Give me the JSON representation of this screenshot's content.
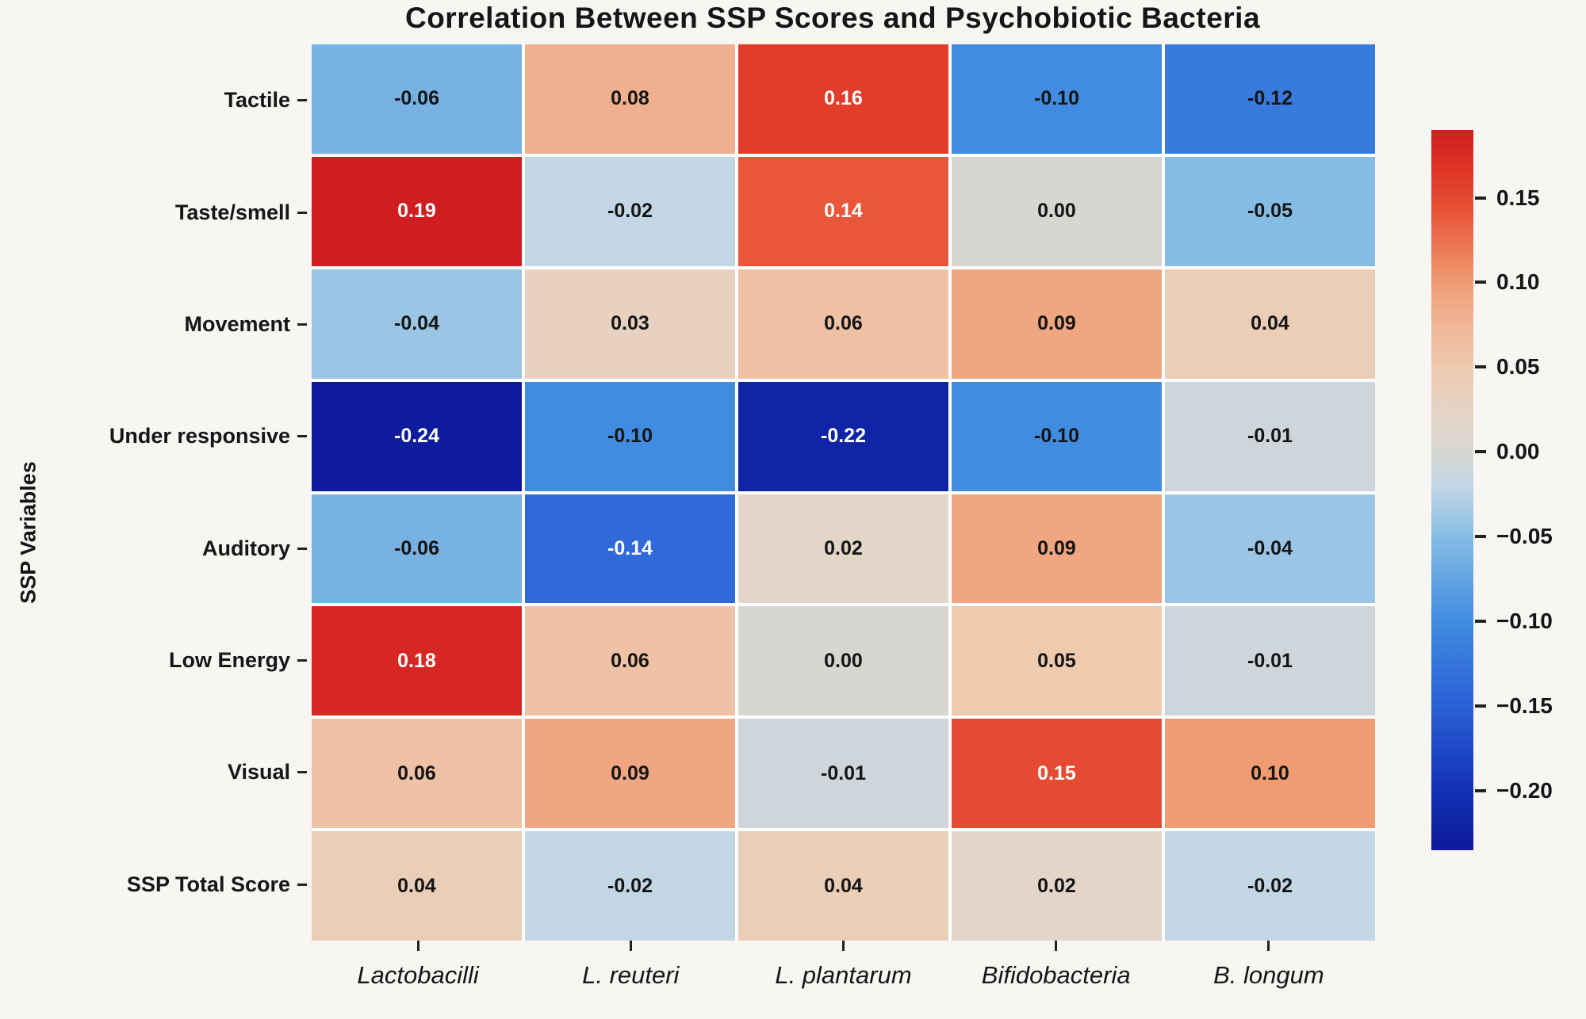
{
  "figure": {
    "background_color": "#f8f6f3",
    "gridline_color": "#ffffff",
    "label_color": "#161616"
  },
  "chart_data": {
    "type": "heatmap",
    "title": "Correlation Between SSP Scores and Psychobiotic Bacteria",
    "xlabel": "",
    "ylabel": "SSP Variables",
    "rows": [
      "Tactile",
      "Taste/smell",
      "Movement",
      "Under responsive",
      "Auditory",
      "Low Energy",
      "Visual",
      "SSP Total Score"
    ],
    "columns": [
      "Lactobacilli",
      "L. reuteri",
      "L. plantarum",
      "Bifidobacteria",
      "B. longum"
    ],
    "values": [
      [
        -0.06,
        0.08,
        0.16,
        -0.1,
        -0.12
      ],
      [
        0.19,
        -0.02,
        0.14,
        0.0,
        -0.05
      ],
      [
        -0.04,
        0.03,
        0.06,
        0.09,
        0.04
      ],
      [
        -0.24,
        -0.1,
        -0.22,
        -0.1,
        -0.01
      ],
      [
        -0.06,
        -0.14,
        0.02,
        0.09,
        -0.04
      ],
      [
        0.18,
        0.06,
        0.0,
        0.05,
        -0.01
      ],
      [
        0.06,
        0.09,
        -0.01,
        0.15,
        0.1
      ],
      [
        0.04,
        -0.02,
        0.04,
        0.02,
        -0.02
      ]
    ],
    "annotation_decimals": 2,
    "white_text_abs_threshold": 0.14,
    "annotation_dark_color": "#141414",
    "annotation_light_color": "#ffffff",
    "color_domain": [
      -0.235,
      0.19
    ],
    "colormap_stops": [
      {
        "value": -0.235,
        "color": "#0d1b9c"
      },
      {
        "value": -0.2,
        "color": "#1231b4"
      },
      {
        "value": -0.15,
        "color": "#2b60d8"
      },
      {
        "value": -0.1,
        "color": "#418ce0"
      },
      {
        "value": -0.05,
        "color": "#85bce4"
      },
      {
        "value": -0.02,
        "color": "#c3d6e4"
      },
      {
        "value": 0.0,
        "color": "#d8d6d2"
      },
      {
        "value": 0.02,
        "color": "#e3d5c8"
      },
      {
        "value": 0.05,
        "color": "#eecaaf"
      },
      {
        "value": 0.08,
        "color": "#f0b090"
      },
      {
        "value": 0.1,
        "color": "#ef9c72"
      },
      {
        "value": 0.14,
        "color": "#e8573a"
      },
      {
        "value": 0.16,
        "color": "#e23c2a"
      },
      {
        "value": 0.19,
        "color": "#d01d20"
      }
    ],
    "colorbar": {
      "position": "right",
      "tick_values": [
        0.15,
        0.1,
        0.05,
        0.0,
        -0.05,
        -0.1,
        -0.15,
        -0.2
      ],
      "tick_labels": [
        "0.15",
        "0.10",
        "0.05",
        "0.00",
        "−0.05",
        "−0.10",
        "−0.15",
        "−0.20"
      ]
    },
    "grid": false,
    "legend_position": "none"
  }
}
